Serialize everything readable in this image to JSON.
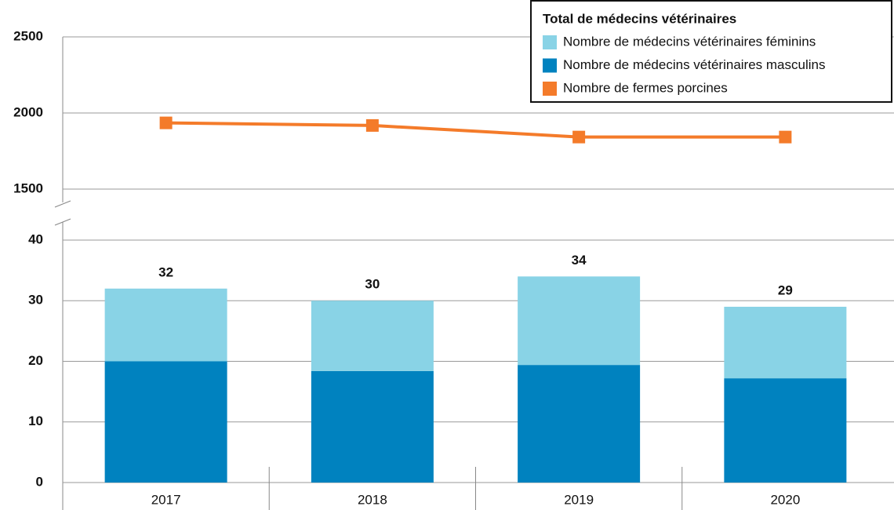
{
  "chart_data": {
    "type": "bar",
    "categories": [
      "2017",
      "2018",
      "2019",
      "2020"
    ],
    "stacked": true,
    "series": [
      {
        "name": "Nombre de médecins vétérinaires féminins",
        "color": "#89d3e6",
        "values": [
          12,
          11.6,
          14.6,
          11.8
        ]
      },
      {
        "name": "Nombre de médecins vétérinaires masculins",
        "color": "#0082bf",
        "values": [
          20,
          18.4,
          19.4,
          17.2
        ]
      },
      {
        "name": "Nombre de fermes porcines",
        "color": "#f47b2a",
        "type": "line",
        "axis": "y2",
        "values": [
          1935,
          1918,
          1842,
          1842
        ]
      }
    ],
    "totals": {
      "name": "Total de médecins vétérinaires",
      "values": [
        32,
        30,
        34,
        29
      ]
    },
    "ylim": [
      0,
      40
    ],
    "yticks": [
      0,
      10,
      20,
      30,
      40
    ],
    "y2lim": [
      1500,
      2500
    ],
    "y2ticks": [
      1500,
      2000,
      2500
    ],
    "grid": true,
    "legend": "top-right"
  }
}
